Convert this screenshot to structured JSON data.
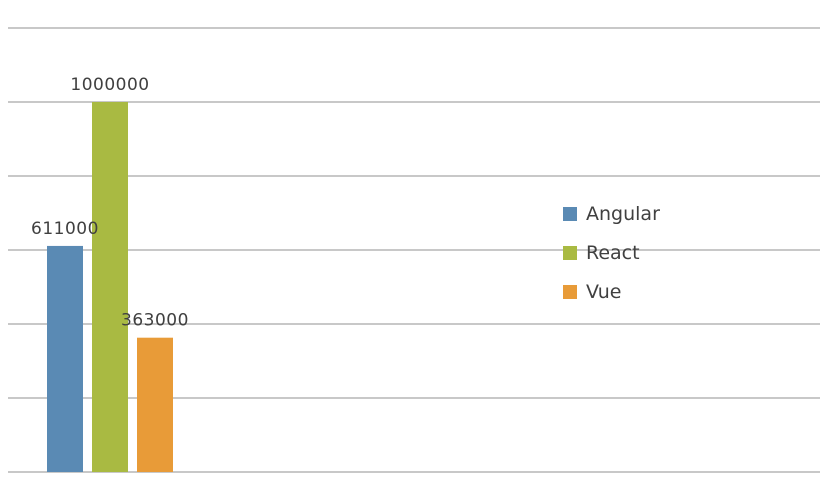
{
  "chart_data": {
    "type": "bar",
    "categories": [
      ""
    ],
    "series": [
      {
        "name": "Angular",
        "values": [
          611000
        ],
        "color": "#5a8ab4"
      },
      {
        "name": "React",
        "values": [
          1000000
        ],
        "color": "#a9ba42"
      },
      {
        "name": "Vue",
        "values": [
          363000
        ],
        "color": "#e89b38"
      }
    ],
    "data_labels": [
      "611000",
      "1000000",
      "363000"
    ],
    "ylim": [
      0,
      1200000
    ],
    "y_grid_step": 200000,
    "grid": true,
    "y_tick_labels_visible": false,
    "legend_position": "right"
  }
}
